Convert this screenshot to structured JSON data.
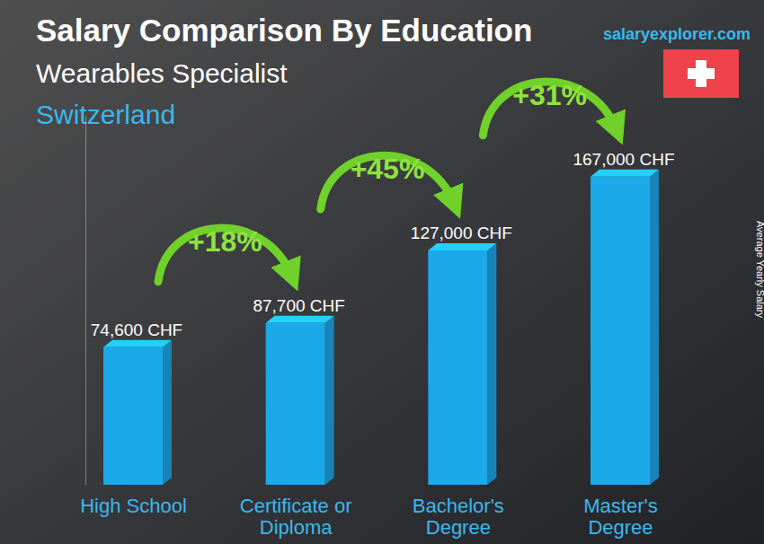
{
  "chart_data": {
    "type": "bar",
    "title": "Salary Comparison By Education",
    "subtitle": "Wearables Specialist",
    "location": "Switzerland",
    "source": "salaryexplorer.com",
    "y_label": "Average Yearly Salary",
    "categories": [
      "High School",
      "Certificate or\nDiploma",
      "Bachelor's\nDegree",
      "Master's\nDegree"
    ],
    "values": [
      74600,
      87700,
      127000,
      167000
    ],
    "value_labels": [
      "74,600 CHF",
      "87,700 CHF",
      "127,000 CHF",
      "167,000 CHF"
    ],
    "annotations": [
      "+18%",
      "+45%",
      "+31%"
    ],
    "color": "#1ca9e9",
    "ylim": [
      0,
      200000
    ],
    "yticks": [],
    "data_labels": true,
    "tick_labels": "x",
    "grid": false
  }
}
